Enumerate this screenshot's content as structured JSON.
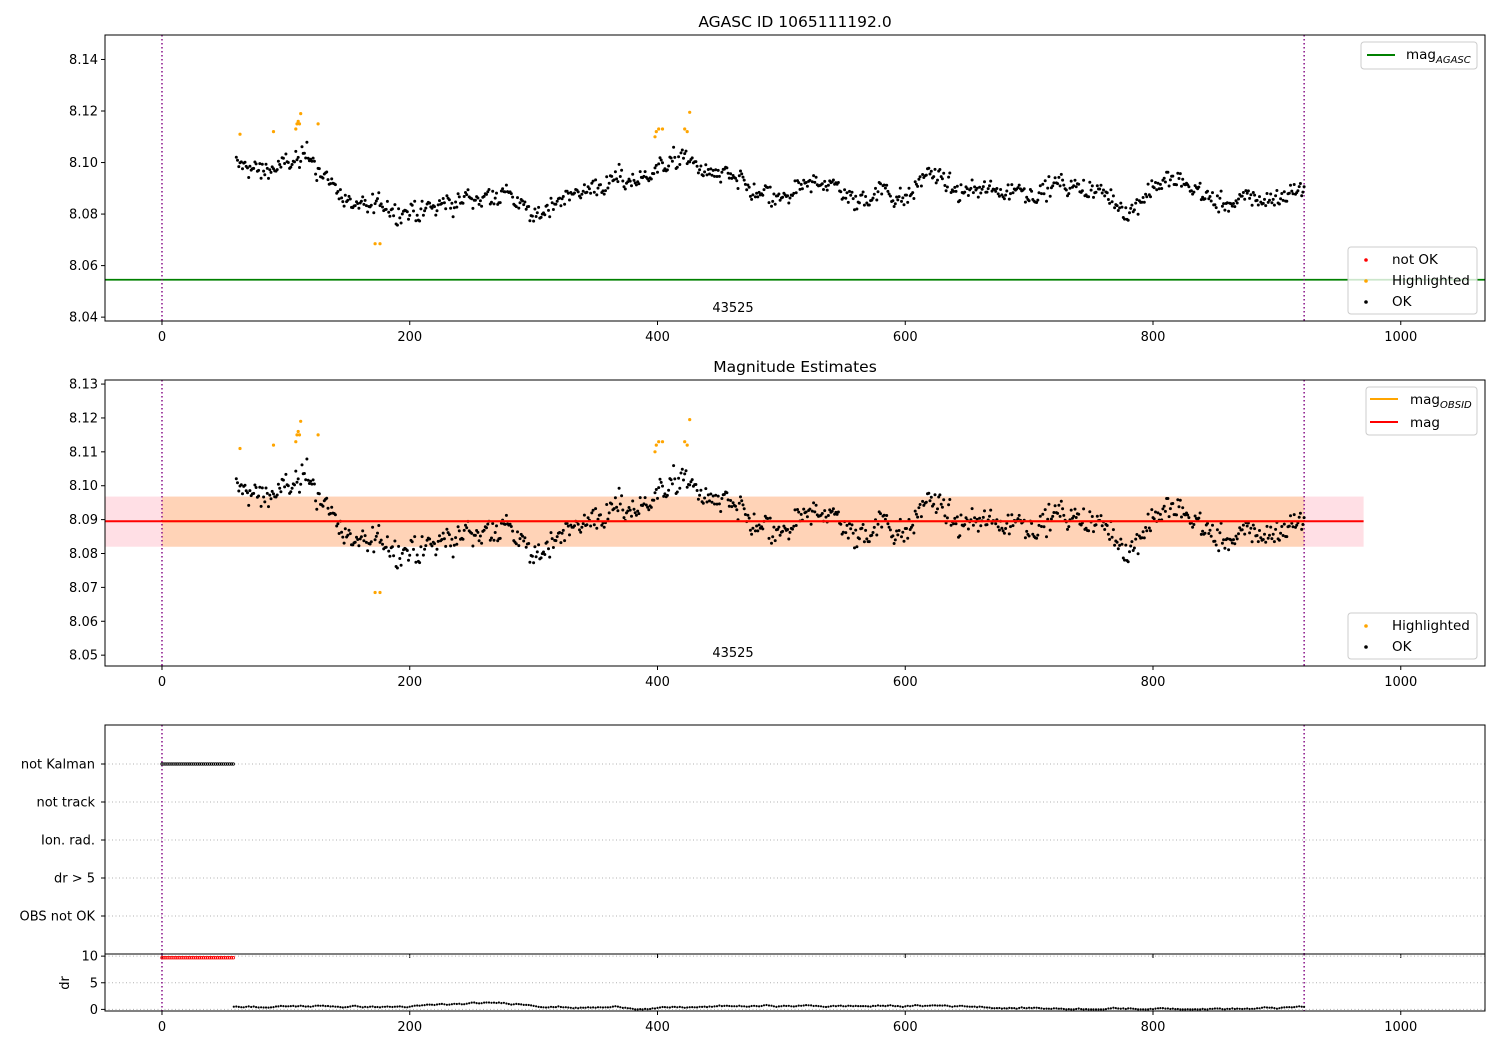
{
  "chart_data": [
    {
      "type": "scatter",
      "title": "AGASC ID 1065111192.0",
      "xlim": [
        -46,
        1068
      ],
      "ylim": [
        8.0385,
        8.1495
      ],
      "x_ticks": [
        0,
        200,
        400,
        600,
        800,
        1000
      ],
      "y_ticks": [
        8.04,
        8.06,
        8.08,
        8.1,
        8.12,
        8.14
      ],
      "grid": false,
      "obsid_annotation": {
        "text": "43525",
        "x": 460
      },
      "vertical_lines": [
        0,
        922
      ],
      "reference_lines": [
        {
          "name": "mag",
          "subscript": "AGASC",
          "y": 8.0545,
          "color": "#008000"
        }
      ],
      "lines_legend_placement": "top-right",
      "points_legend_placement": "bottom-right",
      "points_legend": [
        {
          "label": "not OK",
          "color": "#ff0000"
        },
        {
          "label": "Highlighted",
          "color": "#ffa500"
        },
        {
          "label": "OK",
          "color": "#000000"
        }
      ],
      "series": [
        {
          "name": "OK",
          "color": "#000000",
          "x_range": [
            60,
            922
          ],
          "trend": [
            [
              60,
              8.099
            ],
            [
              80,
              8.097
            ],
            [
              100,
              8.099
            ],
            [
              120,
              8.102
            ],
            [
              135,
              8.093
            ],
            [
              150,
              8.084
            ],
            [
              170,
              8.083
            ],
            [
              190,
              8.082
            ],
            [
              210,
              8.08
            ],
            [
              230,
              8.084
            ],
            [
              260,
              8.087
            ],
            [
              280,
              8.089
            ],
            [
              300,
              8.077
            ],
            [
              320,
              8.087
            ],
            [
              340,
              8.089
            ],
            [
              360,
              8.092
            ],
            [
              380,
              8.093
            ],
            [
              400,
              8.098
            ],
            [
              420,
              8.102
            ],
            [
              440,
              8.096
            ],
            [
              460,
              8.094
            ],
            [
              480,
              8.087
            ],
            [
              500,
              8.085
            ],
            [
              520,
              8.09
            ],
            [
              540,
              8.093
            ],
            [
              560,
              8.084
            ],
            [
              580,
              8.09
            ],
            [
              600,
              8.086
            ],
            [
              620,
              8.098
            ],
            [
              640,
              8.088
            ],
            [
              660,
              8.089
            ],
            [
              680,
              8.09
            ],
            [
              700,
              8.089
            ],
            [
              720,
              8.091
            ],
            [
              740,
              8.09
            ],
            [
              760,
              8.088
            ],
            [
              780,
              8.081
            ],
            [
              800,
              8.091
            ],
            [
              820,
              8.093
            ],
            [
              840,
              8.088
            ],
            [
              860,
              8.083
            ],
            [
              880,
              8.086
            ],
            [
              900,
              8.086
            ],
            [
              922,
              8.091
            ]
          ],
          "spread": 0.0035
        },
        {
          "name": "Highlighted",
          "color": "#ffa500",
          "points": [
            [
              63,
              8.111
            ],
            [
              90,
              8.112
            ],
            [
              108,
              8.113
            ],
            [
              109,
              8.115
            ],
            [
              110,
              8.116
            ],
            [
              111,
              8.115
            ],
            [
              112,
              8.119
            ],
            [
              126,
              8.115
            ],
            [
              172,
              8.0685
            ],
            [
              176,
              8.0685
            ],
            [
              398,
              8.11
            ],
            [
              399,
              8.112
            ],
            [
              401,
              8.113
            ],
            [
              404,
              8.113
            ],
            [
              422,
              8.113
            ],
            [
              424,
              8.112
            ],
            [
              426,
              8.1195
            ]
          ]
        }
      ]
    },
    {
      "type": "scatter",
      "title": "Magnitude Estimates",
      "xlim": [
        -46,
        1068
      ],
      "ylim": [
        8.0468,
        8.1312
      ],
      "x_ticks": [
        0,
        200,
        400,
        600,
        800,
        1000
      ],
      "y_ticks": [
        8.05,
        8.06,
        8.07,
        8.08,
        8.09,
        8.1,
        8.11,
        8.12,
        8.13
      ],
      "grid": false,
      "obsid_annotation": {
        "text": "43525",
        "x": 460
      },
      "vertical_lines": [
        0,
        922
      ],
      "bands": [
        {
          "x": [
            -46,
            970
          ],
          "y": [
            8.082,
            8.0968
          ],
          "color": "#ffc0cb",
          "opacity": 0.5
        },
        {
          "x": [
            0,
            922
          ],
          "y": [
            8.082,
            8.0968
          ],
          "color": "#ffa500",
          "opacity": 0.2
        }
      ],
      "reference_lines": [
        {
          "name": "mag",
          "subscript": "OBSID",
          "y": 8.0895,
          "x": [
            0,
            922
          ],
          "color": "#ffa500"
        },
        {
          "name": "mag",
          "subscript": "",
          "y": 8.0895,
          "x": [
            -46,
            970
          ],
          "color": "#ff0000"
        }
      ],
      "lines_legend_placement": "top-right",
      "points_legend_placement": "bottom-right",
      "points_legend": [
        {
          "label": "Highlighted",
          "color": "#ffa500"
        },
        {
          "label": "OK",
          "color": "#000000"
        }
      ],
      "series": [
        {
          "name": "OK",
          "color": "#000000",
          "same_as_panel": 0
        },
        {
          "name": "Highlighted",
          "color": "#ffa500",
          "same_as_panel": 0
        }
      ]
    },
    {
      "type": "scatter",
      "xlim": [
        -46,
        1068
      ],
      "categories": [
        "not Kalman",
        "not track",
        "Ion. rad.",
        "dr > 5",
        "OBS not OK"
      ],
      "grid": "horizontal dotted",
      "vertical_lines": [
        0,
        922
      ],
      "flag_points": [
        {
          "category": "not Kalman",
          "x": [
            0,
            58
          ],
          "color": "#000000"
        }
      ]
    },
    {
      "type": "scatter",
      "ylabel": "dr",
      "xlim": [
        -46,
        1068
      ],
      "ylim": [
        -0.3,
        10.4
      ],
      "x_ticks": [
        0,
        200,
        400,
        600,
        800,
        1000
      ],
      "y_ticks": [
        0,
        5,
        10
      ],
      "grid": "horizontal dotted",
      "vertical_lines": [
        0,
        922
      ],
      "series": [
        {
          "name": "dr > 5",
          "color": "#ff0000",
          "x_range": [
            0,
            58
          ],
          "value": 9.7
        },
        {
          "name": "dr",
          "color": "#000000",
          "x_range": [
            58,
            922
          ],
          "range": [
            0,
            1.3
          ]
        }
      ]
    }
  ]
}
